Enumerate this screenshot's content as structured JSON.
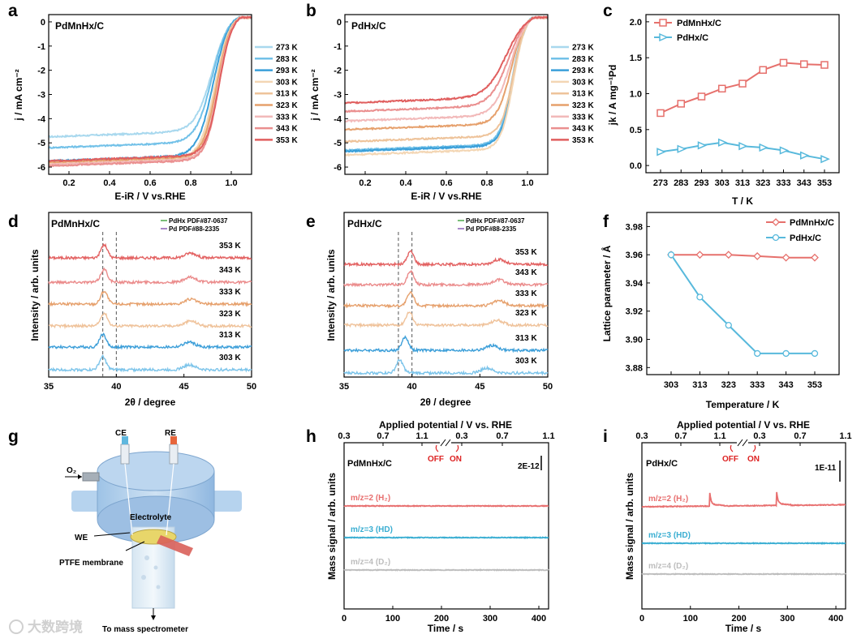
{
  "figure": {
    "panel_labels": [
      "a",
      "b",
      "c",
      "d",
      "e",
      "f",
      "g",
      "h",
      "i"
    ],
    "watermark": "大数跨境"
  },
  "chart_data": [
    {
      "panel": "a",
      "type": "line",
      "name": "PdMnHx/C",
      "xlabel": "E-iR / V vs.RHE",
      "ylabel": "j / mA cm⁻²",
      "xlim": [
        0.1,
        1.1
      ],
      "ylim": [
        -6.3,
        0.3
      ],
      "xticks": [
        "0.2",
        "0.4",
        "0.6",
        "0.8",
        "1.0"
      ],
      "yticks": [
        "0",
        "-1",
        "-2",
        "-3",
        "-4",
        "-5",
        "-6"
      ],
      "series": [
        {
          "name": "273 K",
          "plateau": -4.85,
          "e_half": 0.905,
          "slope": 0.042
        },
        {
          "name": "283 K",
          "plateau": -5.3,
          "e_half": 0.905,
          "slope": 0.04
        },
        {
          "name": "293 K",
          "plateau": -5.85,
          "e_half": 0.91,
          "slope": 0.038
        },
        {
          "name": "303 K",
          "plateau": -5.95,
          "e_half": 0.92,
          "slope": 0.036
        },
        {
          "name": "313 K",
          "plateau": -6.0,
          "e_half": 0.925,
          "slope": 0.035
        },
        {
          "name": "323 K",
          "plateau": -5.9,
          "e_half": 0.93,
          "slope": 0.034
        },
        {
          "name": "333 K",
          "plateau": -6.0,
          "e_half": 0.935,
          "slope": 0.033
        },
        {
          "name": "343 K",
          "plateau": -6.05,
          "e_half": 0.938,
          "slope": 0.032
        },
        {
          "name": "353 K",
          "plateau": -5.85,
          "e_half": 0.94,
          "slope": 0.032
        }
      ]
    },
    {
      "panel": "b",
      "type": "line",
      "name": "PdHx/C",
      "xlabel": "E-iR / V vs.RHE",
      "ylabel": "j / mA cm⁻²",
      "xlim": [
        0.1,
        1.1
      ],
      "ylim": [
        -6.3,
        0.3
      ],
      "xticks": [
        "0.2",
        "0.4",
        "0.6",
        "0.8",
        "1.0"
      ],
      "yticks": [
        "0",
        "-1",
        "-2",
        "-3",
        "-4",
        "-5",
        "-6"
      ],
      "series": [
        {
          "name": "273 K",
          "plateau": -5.45,
          "e_half": 0.925,
          "slope": 0.03
        },
        {
          "name": "283 K",
          "plateau": -5.4,
          "e_half": 0.925,
          "slope": 0.03
        },
        {
          "name": "293 K",
          "plateau": -5.45,
          "e_half": 0.93,
          "slope": 0.03
        },
        {
          "name": "303 K",
          "plateau": -5.6,
          "e_half": 0.93,
          "slope": 0.03
        },
        {
          "name": "313 K",
          "plateau": -5.05,
          "e_half": 0.93,
          "slope": 0.03
        },
        {
          "name": "323 K",
          "plateau": -4.55,
          "e_half": 0.92,
          "slope": 0.035
        },
        {
          "name": "333 K",
          "plateau": -4.2,
          "e_half": 0.915,
          "slope": 0.04
        },
        {
          "name": "343 K",
          "plateau": -3.8,
          "e_half": 0.905,
          "slope": 0.045
        },
        {
          "name": "353 K",
          "plateau": -3.45,
          "e_half": 0.895,
          "slope": 0.05
        }
      ]
    },
    {
      "panel": "c",
      "type": "line",
      "xlabel": "T / K",
      "ylabel": "jk / A mg⁻¹Pd",
      "categories": [
        "273",
        "283",
        "293",
        "303",
        "313",
        "323",
        "333",
        "343",
        "353"
      ],
      "ylim": [
        -0.1,
        2.1
      ],
      "yticks": [
        "0.0",
        "0.5",
        "1.0",
        "1.5",
        "2.0"
      ],
      "legend_position": "top-left",
      "series": [
        {
          "name": "PdMnHx/C",
          "values": [
            0.73,
            0.86,
            0.96,
            1.07,
            1.14,
            1.33,
            1.43,
            1.41,
            1.4
          ]
        },
        {
          "name": "PdHx/C",
          "values": [
            0.19,
            0.23,
            0.28,
            0.32,
            0.27,
            0.25,
            0.21,
            0.14,
            0.09
          ]
        }
      ]
    },
    {
      "panel": "d",
      "type": "line",
      "name": "PdMnHx/C",
      "xlabel": "2θ / degree",
      "ylabel": "Intensity / arb. units",
      "xlim": [
        35,
        50
      ],
      "xticks": [
        "35",
        "40",
        "45",
        "50"
      ],
      "reference_lines": [
        {
          "label": "PdHx PDF#87-0637",
          "x": 39.0
        },
        {
          "label": "Pd PDF#88-2335",
          "x": 40.0
        }
      ],
      "series": [
        {
          "name": "353 K",
          "peak1": 39.1,
          "peak2": 45.5
        },
        {
          "name": "343 K",
          "peak1": 39.1,
          "peak2": 45.5
        },
        {
          "name": "333 K",
          "peak1": 39.1,
          "peak2": 45.5
        },
        {
          "name": "323 K",
          "peak1": 39.1,
          "peak2": 45.5
        },
        {
          "name": "313 K",
          "peak1": 39.0,
          "peak2": 45.4
        },
        {
          "name": "303 K",
          "peak1": 39.0,
          "peak2": 45.4
        }
      ]
    },
    {
      "panel": "e",
      "type": "line",
      "name": "PdHx/C",
      "xlabel": "2θ / degree",
      "ylabel": "Intensity / arb. units",
      "xlim": [
        35,
        50
      ],
      "xticks": [
        "35",
        "40",
        "45",
        "50"
      ],
      "reference_lines": [
        {
          "label": "PdHx PDF#87-0637",
          "x": 39.0
        },
        {
          "label": "Pd PDF#88-2335",
          "x": 40.0
        }
      ],
      "series": [
        {
          "name": "353 K",
          "peak1": 39.9,
          "peak2": 46.4
        },
        {
          "name": "343 K",
          "peak1": 39.9,
          "peak2": 46.4
        },
        {
          "name": "333 K",
          "peak1": 39.9,
          "peak2": 46.4
        },
        {
          "name": "323 K",
          "peak1": 39.8,
          "peak2": 46.3
        },
        {
          "name": "313 K",
          "peak1": 39.5,
          "peak2": 45.9
        },
        {
          "name": "303 K",
          "peak1": 39.1,
          "peak2": 45.5
        }
      ]
    },
    {
      "panel": "f",
      "type": "line",
      "xlabel": "Temperature / K",
      "ylabel": "Lattice parameter / Å",
      "categories": [
        "303",
        "313",
        "323",
        "333",
        "343",
        "353"
      ],
      "ylim": [
        3.875,
        3.99
      ],
      "yticks": [
        "3.88",
        "3.90",
        "3.92",
        "3.94",
        "3.96",
        "3.98"
      ],
      "legend_position": "top-right",
      "series": [
        {
          "name": "PdMnHx/C",
          "values": [
            3.96,
            3.96,
            3.96,
            3.959,
            3.958,
            3.958
          ]
        },
        {
          "name": "PdHx/C",
          "values": [
            3.96,
            3.93,
            3.91,
            3.89,
            3.89,
            3.89
          ]
        }
      ]
    },
    {
      "panel": "h",
      "type": "line",
      "name": "PdMnHx/C",
      "xlabel": "Time / s",
      "ylabel": "Mass signal / arb. units",
      "top_axis_label": "Applied potential / V vs. RHE",
      "top_ticks": [
        "0.3",
        "0.7",
        "1.1",
        "0.3",
        "0.7",
        "1.1"
      ],
      "xlim": [
        0,
        420
      ],
      "xticks": [
        "0",
        "100",
        "200",
        "300",
        "400"
      ],
      "scale_bar": "2E-12",
      "markers": [
        "OFF",
        "ON"
      ],
      "series": [
        {
          "name": "m/z=2 (H₂)",
          "spikes": []
        },
        {
          "name": "m/z=3 (HD)",
          "spikes": []
        },
        {
          "name": "m/z=4 (D₂)",
          "spikes": []
        }
      ]
    },
    {
      "panel": "i",
      "type": "line",
      "name": "PdHx/C",
      "xlabel": "Time / s",
      "ylabel": "Mass signal / arb. units",
      "top_axis_label": "Applied potential / V vs. RHE",
      "top_ticks": [
        "0.3",
        "0.7",
        "1.1",
        "0.3",
        "0.7",
        "1.1"
      ],
      "xlim": [
        0,
        420
      ],
      "xticks": [
        "0",
        "100",
        "200",
        "300",
        "400"
      ],
      "scale_bar": "1E-11",
      "markers": [
        "OFF",
        "ON"
      ],
      "series": [
        {
          "name": "m/z=2 (H₂)",
          "spikes": [
            140,
            278
          ]
        },
        {
          "name": "m/z=3 (HD)",
          "spikes": []
        },
        {
          "name": "m/z=4 (D₂)",
          "spikes": []
        }
      ]
    }
  ],
  "schematic": {
    "labels": {
      "ce": "CE",
      "re": "RE",
      "o2": "O₂",
      "electrolyte": "Electrolyte",
      "we": "WE",
      "membrane": "PTFE membrane",
      "ms": "To mass spectrometer"
    }
  },
  "colors": {
    "temps": [
      "#a8d8ee",
      "#72c1e8",
      "#3a9fd9",
      "#f3d6b4",
      "#eec39a",
      "#e6a06c",
      "#f2b9b9",
      "#ea8f8f",
      "#e05e5e"
    ],
    "xrd": [
      "#e36262",
      "#eb8c8c",
      "#e6a06c",
      "#efc29a",
      "#3d9fd9",
      "#7cc4ea"
    ],
    "pdmn": "#e6706c",
    "pdh": "#58b9dc",
    "h2": "#e86f6f",
    "hd": "#3aaed2",
    "d2": "#bdbdbd",
    "ref1": "#4ea84a",
    "ref2": "#8a5fb5"
  }
}
